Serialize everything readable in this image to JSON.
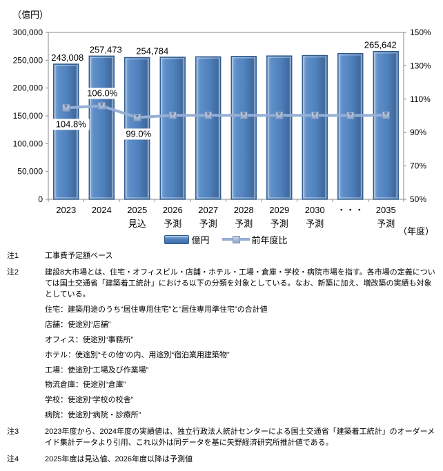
{
  "chart_data": {
    "type": "bar+line",
    "unit_label_left": "（億円）",
    "unit_label_x": "（年度）",
    "categories": [
      "2023",
      "2024",
      "2025",
      "2026",
      "2027",
      "2028",
      "2029",
      "2030",
      "・・・",
      "2035"
    ],
    "category_sublabels": [
      "",
      "",
      "見込",
      "予測",
      "予測",
      "予測",
      "予測",
      "予測",
      "",
      "予測"
    ],
    "bar_series": {
      "name": "億円",
      "values": [
        243008,
        257473,
        254784,
        255500,
        256200,
        256900,
        257700,
        258500,
        262000,
        265642
      ],
      "labels": [
        "243,008",
        "257,473",
        "254,784",
        "",
        "",
        "",
        "",
        "",
        "",
        "265,642"
      ],
      "label_dx": [
        2,
        6,
        22,
        0,
        0,
        0,
        0,
        0,
        0,
        -8
      ]
    },
    "line_series": {
      "name": "前年度比",
      "values": [
        104.8,
        106.0,
        99.0,
        100.3,
        100.3,
        100.3,
        100.3,
        100.3,
        100.2,
        100.4
      ],
      "labels": [
        "104.8%",
        "106.0%",
        "99.0%",
        "",
        "",
        "",
        "",
        "",
        "",
        ""
      ],
      "label_positions": [
        "below",
        "above",
        "below",
        "",
        "",
        "",
        "",
        "",
        "",
        ""
      ],
      "label_dx": [
        7,
        1,
        2,
        0,
        0,
        0,
        0,
        0,
        0,
        0
      ]
    },
    "y_left": {
      "min": 0,
      "max": 300000,
      "step": 50000,
      "tick_labels": [
        "0",
        "50,000",
        "100,000",
        "150,000",
        "200,000",
        "250,000",
        "300,000"
      ]
    },
    "y_right": {
      "min": 50,
      "max": 150,
      "step": 20,
      "tick_labels": [
        "50%",
        "70%",
        "90%",
        "110%",
        "130%",
        "150%"
      ]
    },
    "legend": [
      {
        "type": "bar",
        "label": "億円"
      },
      {
        "type": "line",
        "label": "前年度比"
      }
    ],
    "colors": {
      "bar_fill": "#4f81bd",
      "bar_fill_light": "#8fb2da",
      "bar_border": "#2e5a8a",
      "line": "#95afd6",
      "marker_fill_top": "#ccd9ea",
      "marker_fill_bottom": "#8aa4c6",
      "marker_border": "#7a93bb",
      "axis": "#8a8a8a",
      "text": "#000000"
    }
  },
  "notes": [
    {
      "label": "注1",
      "paragraphs": [
        "工事費予定額ベース"
      ]
    },
    {
      "label": "注2",
      "paragraphs": [
        "建設8大市場とは、住宅・オフィスビル・店舗・ホテル・工場・倉庫・学校・病院市場を指す。各市場の定義については国土交通省「建築着工統計」における以下の分類を対象としている。なお、新築に加え、増改築の実績も対象としている。",
        "住宅：建築用途のうち“居住専用住宅”と“居住専用準住宅”の合計値",
        "店舗：使途別“店舗”",
        "オフィス：使途別“事務所”",
        "ホテル：使途別“その他”の内、用途別“宿泊業用建築物”",
        "工場：使途別“工場及び作業場”",
        "物流倉庫：使途別“倉庫”",
        "学校：使途別“学校の校舎”",
        "病院：使途別“病院・診療所”"
      ]
    },
    {
      "label": "注3",
      "paragraphs": [
        "2023年度から、2024年度の実績値は、独立行政法人統計センターによる国土交通省「建築着工統計」のオーダーメイド集計データより引用、これ以外は同データを基に矢野経済研究所推計値である。"
      ]
    },
    {
      "label": "注4",
      "paragraphs": [
        "2025年度は見込値、2026年度以降は予測値"
      ]
    }
  ]
}
